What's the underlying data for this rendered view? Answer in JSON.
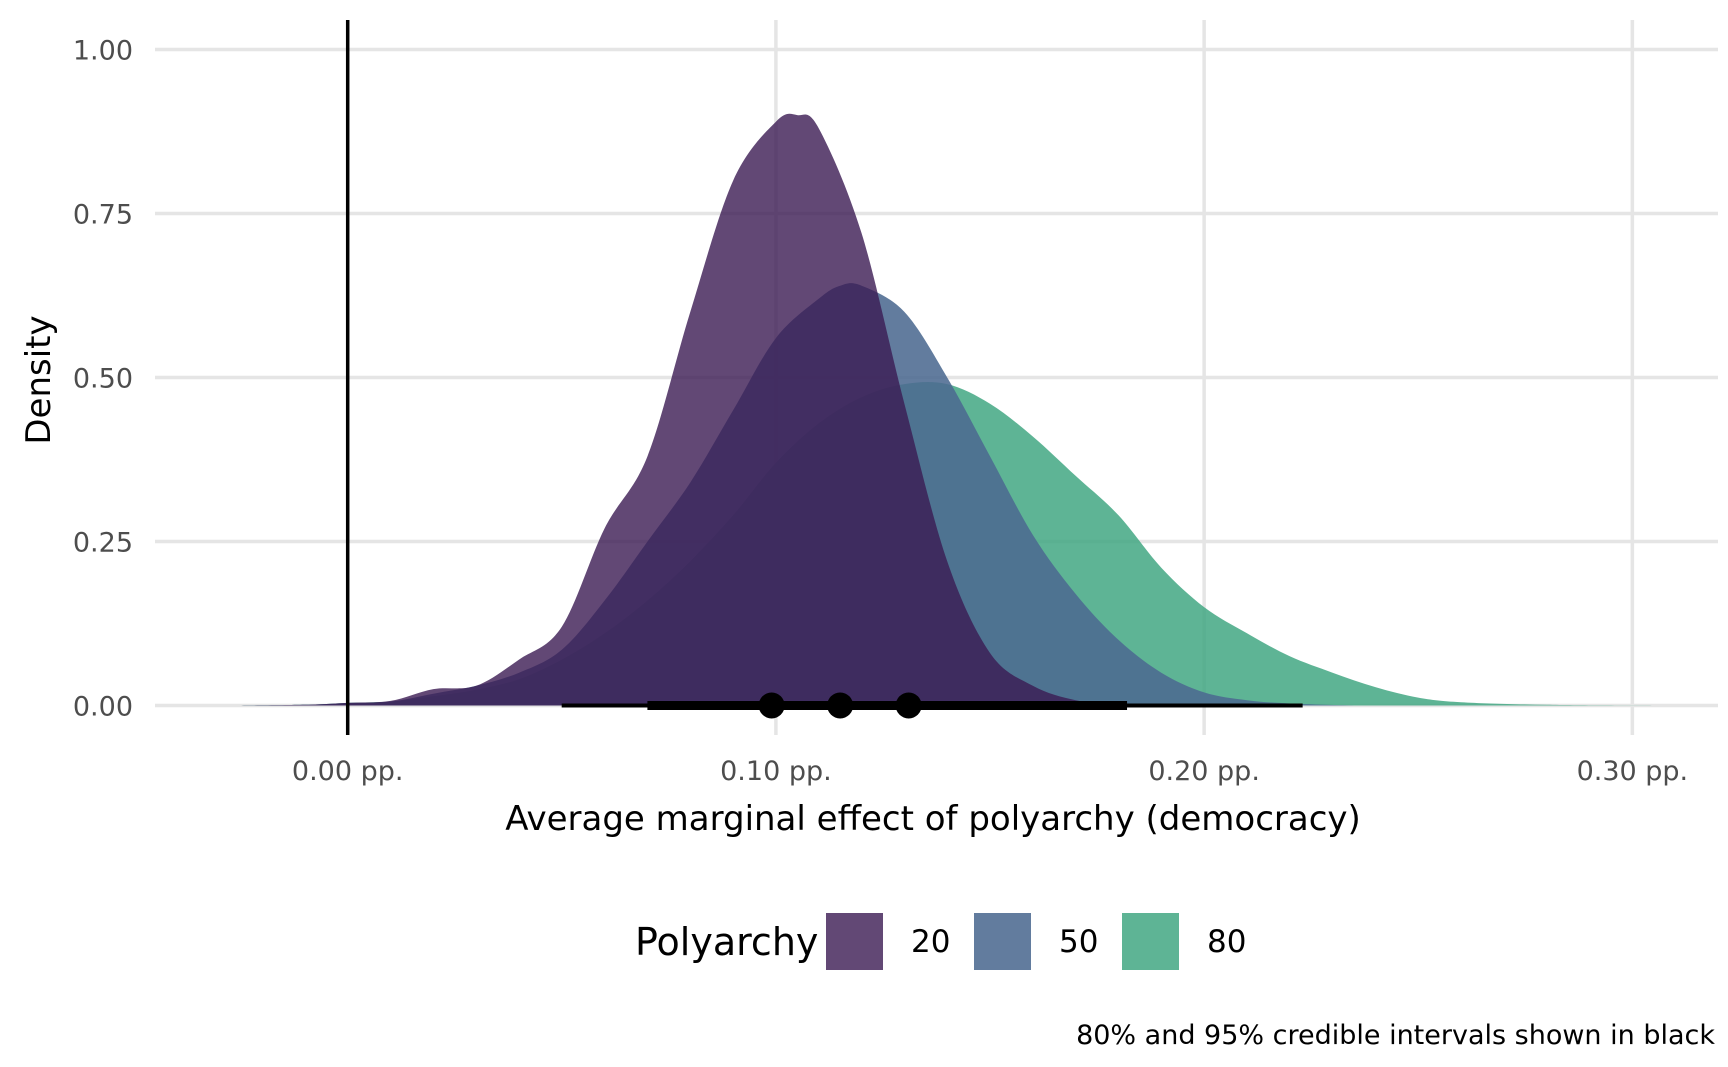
{
  "chart_data": {
    "type": "area",
    "subtype": "density (halfeye)",
    "xlabel": "Average marginal effect of polyarchy (democracy)",
    "ylabel": "Density",
    "xlim": [
      -0.045,
      0.32
    ],
    "ylim": [
      -0.045,
      1.045
    ],
    "x_ticks": [
      {
        "value": 0.0,
        "label": "0.00 pp."
      },
      {
        "value": 0.1,
        "label": "0.10 pp."
      },
      {
        "value": 0.2,
        "label": "0.20 pp."
      },
      {
        "value": 0.3,
        "label": "0.30 pp."
      }
    ],
    "y_ticks": [
      {
        "value": 0.0,
        "label": "0.00"
      },
      {
        "value": 0.25,
        "label": "0.25"
      },
      {
        "value": 0.5,
        "label": "0.50"
      },
      {
        "value": 0.75,
        "label": "0.75"
      },
      {
        "value": 1.0,
        "label": "1.00"
      }
    ],
    "grid": true,
    "reference_line_x": 0.0,
    "legend": {
      "title": "Polyarchy",
      "position": "bottom"
    },
    "caption": "80% and 95% credible intervals shown in black",
    "series": [
      {
        "name": "80",
        "color": "#3aa37e",
        "opacity": 0.82,
        "density": [
          [
            -0.03,
            0
          ],
          [
            -0.01,
            0.001
          ],
          [
            0.0,
            0.004
          ],
          [
            0.01,
            0.006
          ],
          [
            0.02,
            0.014
          ],
          [
            0.03,
            0.024
          ],
          [
            0.04,
            0.04
          ],
          [
            0.05,
            0.07
          ],
          [
            0.06,
            0.11
          ],
          [
            0.07,
            0.16
          ],
          [
            0.08,
            0.22
          ],
          [
            0.09,
            0.29
          ],
          [
            0.1,
            0.37
          ],
          [
            0.11,
            0.43
          ],
          [
            0.12,
            0.47
          ],
          [
            0.13,
            0.49
          ],
          [
            0.14,
            0.49
          ],
          [
            0.15,
            0.46
          ],
          [
            0.16,
            0.41
          ],
          [
            0.17,
            0.35
          ],
          [
            0.18,
            0.29
          ],
          [
            0.19,
            0.21
          ],
          [
            0.2,
            0.15
          ],
          [
            0.21,
            0.11
          ],
          [
            0.22,
            0.075
          ],
          [
            0.23,
            0.05
          ],
          [
            0.24,
            0.028
          ],
          [
            0.25,
            0.012
          ],
          [
            0.26,
            0.005
          ],
          [
            0.28,
            0.001
          ],
          [
            0.305,
            0
          ]
        ],
        "median": 0.131,
        "interval_80": [
          0.075,
          0.182
        ],
        "interval_95": [
          0.055,
          0.223
        ]
      },
      {
        "name": "50",
        "color": "#4c6a91",
        "opacity": 0.88,
        "density": [
          [
            -0.03,
            0
          ],
          [
            -0.01,
            0.001
          ],
          [
            0.0,
            0.004
          ],
          [
            0.01,
            0.006
          ],
          [
            0.02,
            0.018
          ],
          [
            0.03,
            0.03
          ],
          [
            0.04,
            0.05
          ],
          [
            0.05,
            0.085
          ],
          [
            0.06,
            0.16
          ],
          [
            0.07,
            0.25
          ],
          [
            0.08,
            0.34
          ],
          [
            0.09,
            0.45
          ],
          [
            0.1,
            0.56
          ],
          [
            0.11,
            0.62
          ],
          [
            0.115,
            0.64
          ],
          [
            0.12,
            0.64
          ],
          [
            0.13,
            0.6
          ],
          [
            0.14,
            0.5
          ],
          [
            0.15,
            0.38
          ],
          [
            0.16,
            0.26
          ],
          [
            0.17,
            0.17
          ],
          [
            0.18,
            0.1
          ],
          [
            0.19,
            0.05
          ],
          [
            0.2,
            0.02
          ],
          [
            0.21,
            0.008
          ],
          [
            0.22,
            0.003
          ],
          [
            0.235,
            0
          ]
        ],
        "median": 0.115,
        "interval_80": [
          0.07,
          0.158
        ],
        "interval_95": [
          0.05,
          0.182
        ]
      },
      {
        "name": "20",
        "color": "#3b1a52",
        "opacity": 0.8,
        "density": [
          [
            -0.03,
            0
          ],
          [
            -0.01,
            0.001
          ],
          [
            0.0,
            0.004
          ],
          [
            0.01,
            0.007
          ],
          [
            0.02,
            0.025
          ],
          [
            0.03,
            0.03
          ],
          [
            0.04,
            0.07
          ],
          [
            0.05,
            0.12
          ],
          [
            0.06,
            0.27
          ],
          [
            0.07,
            0.38
          ],
          [
            0.08,
            0.6
          ],
          [
            0.09,
            0.8
          ],
          [
            0.1,
            0.89
          ],
          [
            0.105,
            0.9
          ],
          [
            0.11,
            0.88
          ],
          [
            0.12,
            0.72
          ],
          [
            0.13,
            0.46
          ],
          [
            0.14,
            0.22
          ],
          [
            0.15,
            0.08
          ],
          [
            0.16,
            0.03
          ],
          [
            0.17,
            0.008
          ],
          [
            0.18,
            0.002
          ],
          [
            0.2,
            0
          ]
        ],
        "median": 0.099,
        "interval_80": [
          0.07,
          0.13
        ],
        "interval_95": [
          0.05,
          0.158
        ]
      }
    ]
  }
}
